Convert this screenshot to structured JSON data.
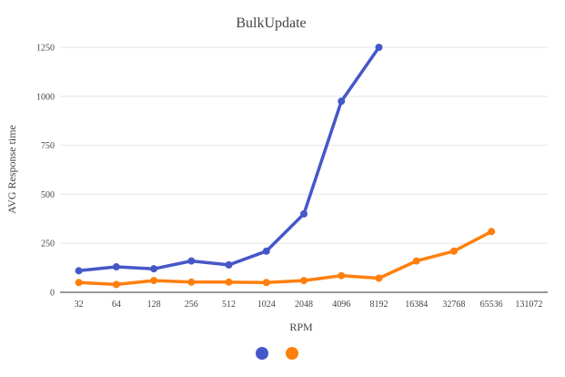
{
  "chart_data": {
    "type": "line",
    "title": "BulkUpdate",
    "xlabel": "RPM",
    "ylabel": "AVG Response time",
    "categories": [
      "32",
      "64",
      "128",
      "256",
      "512",
      "1024",
      "2048",
      "4096",
      "8192",
      "16384",
      "32768",
      "65536",
      "131072"
    ],
    "ylim": [
      0,
      1250
    ],
    "yticks": [
      0,
      250,
      500,
      750,
      1000,
      1250
    ],
    "grid": true,
    "legend": "bottom-center",
    "series": [
      {
        "color": "#4657c8",
        "values": [
          110,
          130,
          120,
          160,
          140,
          210,
          400,
          975,
          1250,
          null,
          null,
          null,
          null
        ]
      },
      {
        "color": "#ff7f0e",
        "values": [
          50,
          40,
          60,
          52,
          52,
          50,
          60,
          85,
          72,
          160,
          210,
          310,
          null
        ]
      }
    ]
  }
}
